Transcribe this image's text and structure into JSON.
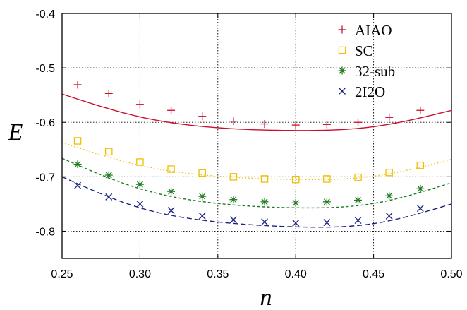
{
  "chart_data": {
    "type": "scatter",
    "xlabel": "n",
    "ylabel": "E",
    "xlim": [
      0.25,
      0.5
    ],
    "ylim": [
      -0.85,
      -0.4
    ],
    "xticks": [
      "0.25",
      "0.30",
      "0.35",
      "0.40",
      "0.45",
      "0.50"
    ],
    "yticks": [
      "-0.4",
      "-0.5",
      "-0.6",
      "-0.7",
      "-0.8"
    ],
    "grid": true,
    "legend_position": "top-right",
    "x": [
      0.26,
      0.28,
      0.3,
      0.32,
      0.34,
      0.36,
      0.38,
      0.4,
      0.42,
      0.44,
      0.46,
      0.48
    ],
    "series": [
      {
        "name": "AIAO",
        "marker": "plus",
        "color": "#c8102e",
        "values": [
          -0.531,
          -0.547,
          -0.567,
          -0.578,
          -0.589,
          -0.598,
          -0.603,
          -0.605,
          -0.604,
          -0.6,
          -0.591,
          -0.578
        ],
        "fit": {
          "x": [
            0.25,
            0.3,
            0.35,
            0.4,
            0.45,
            0.5
          ],
          "y": [
            -0.548,
            -0.59,
            -0.61,
            -0.615,
            -0.608,
            -0.578
          ]
        }
      },
      {
        "name": "SC",
        "marker": "square",
        "color": "#f0c000",
        "values": [
          -0.634,
          -0.654,
          -0.673,
          -0.686,
          -0.693,
          -0.7,
          -0.704,
          -0.705,
          -0.704,
          -0.701,
          -0.692,
          -0.679
        ],
        "fit": {
          "x": [
            0.25,
            0.3,
            0.35,
            0.4,
            0.45,
            0.5
          ],
          "y": [
            -0.637,
            -0.679,
            -0.699,
            -0.705,
            -0.699,
            -0.668
          ]
        }
      },
      {
        "name": "32-sub",
        "marker": "asterisk",
        "color": "#1e7a1e",
        "values": [
          -0.677,
          -0.697,
          -0.714,
          -0.727,
          -0.736,
          -0.742,
          -0.746,
          -0.748,
          -0.746,
          -0.743,
          -0.735,
          -0.722
        ],
        "fit": {
          "x": [
            0.25,
            0.3,
            0.35,
            0.4,
            0.45,
            0.5
          ],
          "y": [
            -0.666,
            -0.722,
            -0.749,
            -0.757,
            -0.749,
            -0.711
          ]
        }
      },
      {
        "name": "2I2O",
        "marker": "cross",
        "color": "#1a237e",
        "values": [
          -0.716,
          -0.737,
          -0.75,
          -0.762,
          -0.772,
          -0.779,
          -0.783,
          -0.785,
          -0.784,
          -0.78,
          -0.772,
          -0.758
        ],
        "fit": {
          "x": [
            0.25,
            0.3,
            0.35,
            0.4,
            0.45,
            0.5
          ],
          "y": [
            -0.7,
            -0.757,
            -0.783,
            -0.792,
            -0.786,
            -0.75
          ]
        }
      }
    ]
  }
}
